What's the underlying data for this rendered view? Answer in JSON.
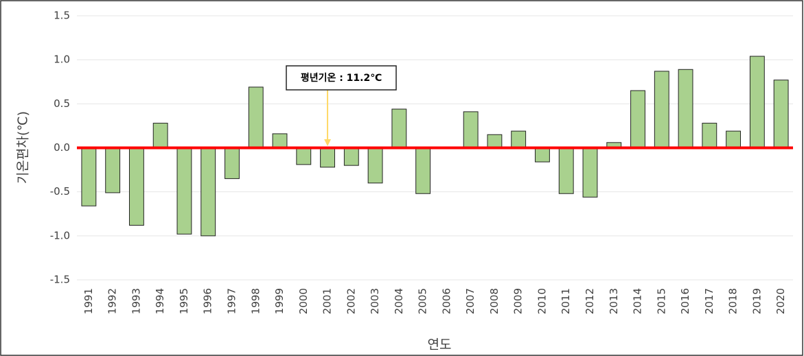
{
  "chart_data": {
    "type": "bar",
    "categories": [
      "1991",
      "1992",
      "1993",
      "1994",
      "1995",
      "1996",
      "1997",
      "1998",
      "1999",
      "2000",
      "2001",
      "2002",
      "2003",
      "2004",
      "2005",
      "2006",
      "2007",
      "2008",
      "2009",
      "2010",
      "2011",
      "2012",
      "2013",
      "2014",
      "2015",
      "2016",
      "2017",
      "2018",
      "2019",
      "2020"
    ],
    "values": [
      -0.66,
      -0.51,
      -0.88,
      0.28,
      -0.98,
      -1.0,
      -0.35,
      0.69,
      0.16,
      -0.19,
      -0.22,
      -0.2,
      -0.4,
      0.44,
      -0.52,
      0,
      0.41,
      0.15,
      0.19,
      -0.16,
      -0.52,
      -0.56,
      0.06,
      0.65,
      0.87,
      0.89,
      0.28,
      0.19,
      1.04,
      0.77
    ],
    "color": "#a9d18e",
    "ylim": [
      -1.5,
      1.5
    ],
    "yticks": [
      -1.5,
      {
        "value": -1,
        "label": "-1.0"
      },
      -0.5,
      {
        "value": 0,
        "label": "0.0"
      },
      0.5,
      {
        "value": 1,
        "label": "1.0"
      },
      1.5
    ],
    "grid": true,
    "y_label": "기온편차(℃)",
    "x_label": "연도",
    "reference_line": {
      "value": 0,
      "color": "#ff0000"
    },
    "annotation": "평년기온 : 11.2℃"
  }
}
